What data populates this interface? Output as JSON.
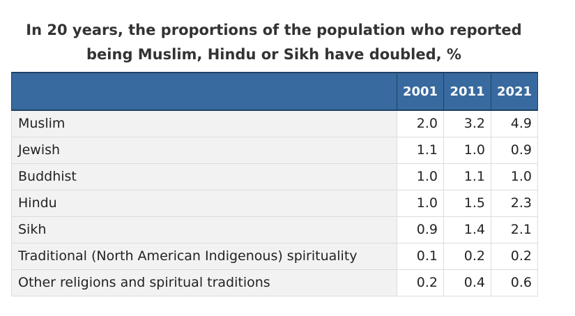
{
  "title": {
    "line1": "In 20 years, the proportions of the population who reported",
    "line2": "being Muslim, Hindu or Sikh have doubled, %"
  },
  "chart_data": {
    "type": "table",
    "title": "In 20 years, the proportions of the population who reported being Muslim, Hindu or Sikh have doubled, %",
    "columns": [
      "2001",
      "2011",
      "2021"
    ],
    "rows": [
      {
        "label": "Muslim",
        "values": [
          "2.0",
          "3.2",
          "4.9"
        ]
      },
      {
        "label": "Jewish",
        "values": [
          "1.1",
          "1.0",
          "0.9"
        ]
      },
      {
        "label": "Buddhist",
        "values": [
          "1.0",
          "1.1",
          "1.0"
        ]
      },
      {
        "label": "Hindu",
        "values": [
          "1.0",
          "1.5",
          "2.3"
        ]
      },
      {
        "label": "Sikh",
        "values": [
          "0.9",
          "1.4",
          "2.1"
        ]
      },
      {
        "label": "Traditional (North American Indigenous) spirituality",
        "values": [
          "0.1",
          "0.2",
          "0.2"
        ]
      },
      {
        "label": "Other religions and spiritual traditions",
        "values": [
          "0.2",
          "0.4",
          "0.6"
        ]
      }
    ]
  },
  "colors": {
    "header_background": "#386a9f",
    "header_text": "#ffffff",
    "category_background": "#f2f2f2"
  }
}
